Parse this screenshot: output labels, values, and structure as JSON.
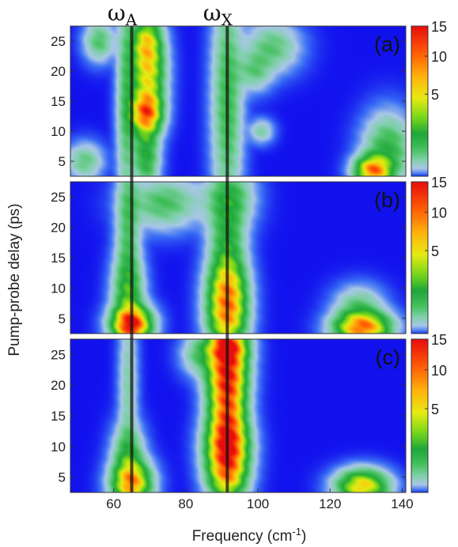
{
  "chart_data": {
    "type": "heatmap",
    "xlabel": "Frequency (cm",
    "xlabel_sup": "-1",
    "xlabel_tail": ")",
    "ylabel": "Pump-probe delay (ps)",
    "xlim": [
      48,
      141
    ],
    "ylim": [
      2.5,
      27.5
    ],
    "xticks": [
      "60",
      "80",
      "100",
      "120",
      "140"
    ],
    "yticks": [
      "5",
      "10",
      "15",
      "20",
      "25"
    ],
    "colorbar": {
      "ticks": [
        "15",
        "10",
        "5"
      ],
      "tick_values": [
        15,
        10,
        5
      ],
      "range": [
        0,
        15
      ],
      "colors": [
        "#1111ee",
        "#3a6ff5",
        "#a9c7e8",
        "#7fd0a8",
        "#42bf5a",
        "#1ea83a",
        "#7ad81a",
        "#e8ea12",
        "#ffb20c",
        "#ff5a06",
        "#e80d0d"
      ]
    },
    "reference_lines": [
      {
        "label": "ω",
        "subscript": "A",
        "x": 65
      },
      {
        "label": "ω",
        "subscript": "X",
        "x": 91.5
      }
    ],
    "panels": [
      {
        "label": "(a)",
        "blobs": [
          {
            "x": 69,
            "y": 13,
            "sx": 2.6,
            "sy": 2.2,
            "a": 11
          },
          {
            "x": 69.5,
            "y": 20,
            "sx": 2.8,
            "sy": 4.5,
            "a": 8
          },
          {
            "x": 69,
            "y": 25,
            "sx": 2.4,
            "sy": 2.5,
            "a": 5
          },
          {
            "x": 69,
            "y": 6,
            "sx": 2.2,
            "sy": 3.5,
            "a": 4
          },
          {
            "x": 63.5,
            "y": 15,
            "sx": 1.6,
            "sy": 12,
            "a": 2.6
          },
          {
            "x": 56,
            "y": 25,
            "sx": 2.5,
            "sy": 2,
            "a": 2.6
          },
          {
            "x": 52,
            "y": 5,
            "sx": 3,
            "sy": 1.8,
            "a": 2.2
          },
          {
            "x": 91.5,
            "y": 15,
            "sx": 2.5,
            "sy": 12,
            "a": 3.2
          },
          {
            "x": 104,
            "y": 24,
            "sx": 4.5,
            "sy": 2.5,
            "a": 2.4
          },
          {
            "x": 99,
            "y": 20,
            "sx": 3,
            "sy": 2,
            "a": 2.1
          },
          {
            "x": 101,
            "y": 10,
            "sx": 2,
            "sy": 1.2,
            "a": 1.6
          },
          {
            "x": 132,
            "y": 3.5,
            "sx": 3,
            "sy": 1.5,
            "a": 11
          },
          {
            "x": 136,
            "y": 7,
            "sx": 4,
            "sy": 3.5,
            "a": 3.5
          }
        ]
      },
      {
        "label": "(b)",
        "blobs": [
          {
            "x": 65,
            "y": 4,
            "sx": 3.2,
            "sy": 1.8,
            "a": 14.5
          },
          {
            "x": 64,
            "y": 9,
            "sx": 2.6,
            "sy": 4,
            "a": 4
          },
          {
            "x": 64,
            "y": 20,
            "sx": 2,
            "sy": 8,
            "a": 2.6
          },
          {
            "x": 74,
            "y": 24,
            "sx": 6,
            "sy": 2.5,
            "a": 2.8
          },
          {
            "x": 91.5,
            "y": 5,
            "sx": 3.2,
            "sy": 3,
            "a": 9
          },
          {
            "x": 91.5,
            "y": 10,
            "sx": 3.2,
            "sy": 3,
            "a": 7.5
          },
          {
            "x": 91.5,
            "y": 17,
            "sx": 3,
            "sy": 5,
            "a": 4
          },
          {
            "x": 92,
            "y": 25,
            "sx": 4,
            "sy": 3,
            "a": 3.2
          },
          {
            "x": 129,
            "y": 3.5,
            "sx": 4.5,
            "sy": 1.6,
            "a": 12
          },
          {
            "x": 128,
            "y": 7,
            "sx": 4,
            "sy": 2,
            "a": 2.2
          }
        ]
      },
      {
        "label": "(c)",
        "blobs": [
          {
            "x": 65,
            "y": 4,
            "sx": 3.2,
            "sy": 2.2,
            "a": 10.5
          },
          {
            "x": 64,
            "y": 8.5,
            "sx": 2.6,
            "sy": 3,
            "a": 3.5
          },
          {
            "x": 64,
            "y": 20,
            "sx": 1.6,
            "sy": 8,
            "a": 1.6
          },
          {
            "x": 91.5,
            "y": 10,
            "sx": 3.4,
            "sy": 3,
            "a": 14
          },
          {
            "x": 91.5,
            "y": 5,
            "sx": 3.2,
            "sy": 2.5,
            "a": 8
          },
          {
            "x": 91.5,
            "y": 16,
            "sx": 3,
            "sy": 3.5,
            "a": 10
          },
          {
            "x": 91.5,
            "y": 22,
            "sx": 3.2,
            "sy": 3,
            "a": 12
          },
          {
            "x": 91.5,
            "y": 26.5,
            "sx": 3.2,
            "sy": 2,
            "a": 14
          },
          {
            "x": 84,
            "y": 25,
            "sx": 3,
            "sy": 2,
            "a": 2.5
          },
          {
            "x": 129,
            "y": 3.5,
            "sx": 4.2,
            "sy": 1.6,
            "a": 9
          }
        ]
      }
    ]
  }
}
